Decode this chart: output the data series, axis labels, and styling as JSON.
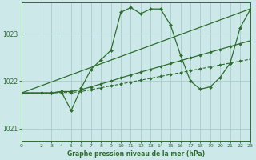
{
  "bg_color": "#cce8e8",
  "grid_color": "#aacccc",
  "line_color": "#2d6e2d",
  "title": "Graphe pression niveau de la mer (hPa)",
  "xlim": [
    0,
    23
  ],
  "ylim": [
    1020.75,
    1023.65
  ],
  "yticks": [
    1021,
    1022,
    1023
  ],
  "xticks": [
    0,
    2,
    3,
    4,
    5,
    6,
    7,
    8,
    9,
    10,
    11,
    12,
    13,
    14,
    15,
    16,
    17,
    18,
    19,
    20,
    21,
    22,
    23
  ],
  "series": [
    {
      "x": [
        0,
        2,
        3,
        4,
        5,
        6,
        7,
        8,
        9,
        10,
        11,
        12,
        13,
        14,
        15,
        16,
        17,
        18,
        19,
        20,
        21,
        22,
        23
      ],
      "y": [
        1021.75,
        1021.75,
        1021.75,
        1021.78,
        1021.38,
        1021.85,
        1022.25,
        1022.45,
        1022.65,
        1023.45,
        1023.55,
        1023.42,
        1023.52,
        1023.52,
        1023.18,
        1022.55,
        1022.0,
        1021.83,
        1021.88,
        1022.08,
        1022.38,
        1023.12,
        1023.5
      ],
      "style": "-",
      "marker": "D",
      "markersize": 2.0,
      "linewidth": 0.9,
      "zorder": 5
    },
    {
      "x": [
        0,
        23
      ],
      "y": [
        1021.75,
        1023.52
      ],
      "style": "-",
      "marker": "None",
      "markersize": 0,
      "linewidth": 0.9,
      "zorder": 4
    },
    {
      "x": [
        0,
        2,
        3,
        4,
        5,
        6,
        7,
        8,
        9,
        10,
        11,
        12,
        13,
        14,
        15,
        16,
        17,
        18,
        19,
        20,
        21,
        22,
        23
      ],
      "y": [
        1021.75,
        1021.75,
        1021.75,
        1021.78,
        1021.78,
        1021.82,
        1021.88,
        1021.94,
        1022.0,
        1022.07,
        1022.13,
        1022.19,
        1022.25,
        1022.31,
        1022.37,
        1022.43,
        1022.49,
        1022.55,
        1022.61,
        1022.67,
        1022.73,
        1022.79,
        1022.85
      ],
      "style": "-",
      "marker": "D",
      "markersize": 1.8,
      "linewidth": 0.9,
      "zorder": 3
    },
    {
      "x": [
        0,
        2,
        3,
        4,
        5,
        6,
        7,
        8,
        9,
        10,
        11,
        12,
        13,
        14,
        15,
        16,
        17,
        18,
        19,
        20,
        21,
        22,
        23
      ],
      "y": [
        1021.75,
        1021.75,
        1021.75,
        1021.76,
        1021.76,
        1021.78,
        1021.82,
        1021.86,
        1021.9,
        1021.94,
        1021.98,
        1022.02,
        1022.06,
        1022.1,
        1022.14,
        1022.18,
        1022.22,
        1022.26,
        1022.3,
        1022.34,
        1022.38,
        1022.42,
        1022.46
      ],
      "style": "--",
      "marker": "D",
      "markersize": 1.8,
      "linewidth": 0.8,
      "zorder": 2
    }
  ]
}
